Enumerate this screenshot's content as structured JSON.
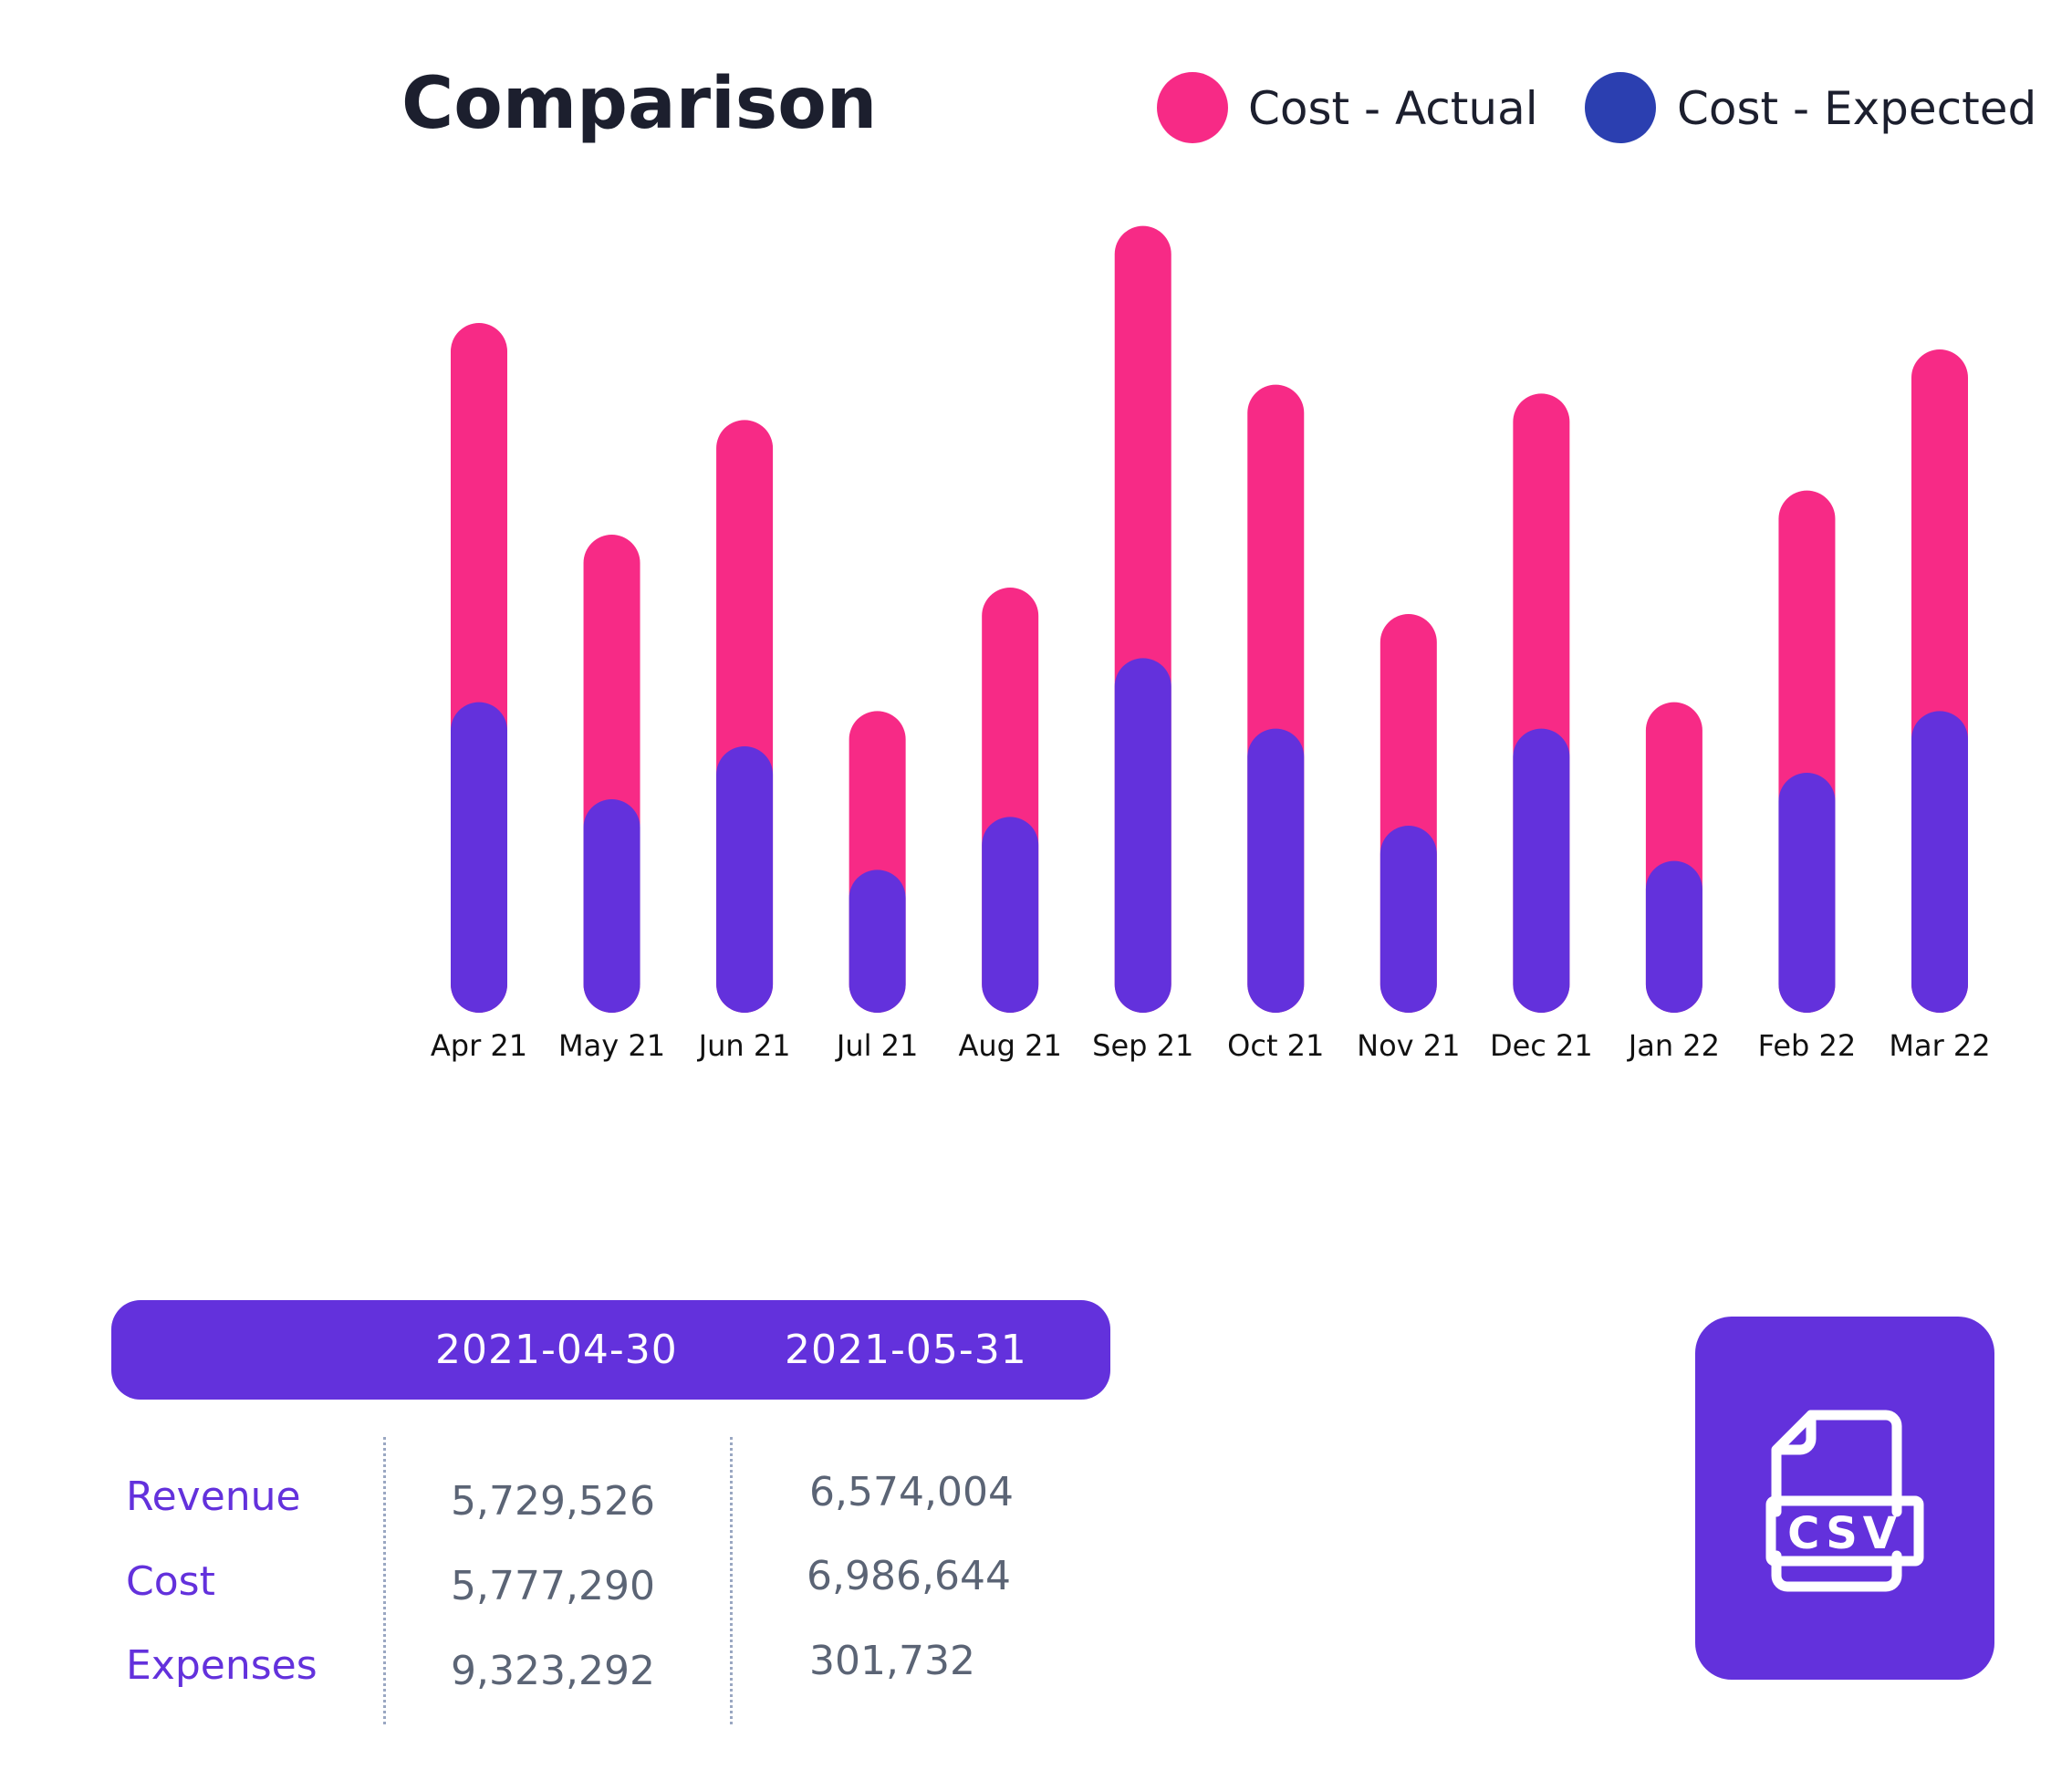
{
  "colors": {
    "actual": "#f72a86",
    "expected": "#6331dc",
    "legend_expected": "#2b3fb0",
    "accent": "#6331dc"
  },
  "chart_data": {
    "type": "bar",
    "stacked": "overlay",
    "title": "Comparison",
    "legend_position": "top-right",
    "categories": [
      "Apr 21",
      "May 21",
      "Jun 21",
      "Jul 21",
      "Aug 21",
      "Sep 21",
      "Oct 21",
      "Nov 21",
      "Dec 21",
      "Jan 22",
      "Feb 22",
      "Mar 22"
    ],
    "series": [
      {
        "name": "Cost - Actual",
        "values": [
          75,
          51,
          64,
          31,
          45,
          86,
          68,
          42,
          67,
          32,
          56,
          72
        ]
      },
      {
        "name": "Cost - Expected",
        "values": [
          32,
          21,
          27,
          13,
          19,
          37,
          29,
          18,
          29,
          14,
          24,
          31
        ]
      }
    ],
    "ylim": [
      0,
      90
    ],
    "grid": false
  },
  "table": {
    "columns": [
      "2021-04-30",
      "2021-05-31"
    ],
    "rows": [
      {
        "label": "Revenue",
        "values": [
          "5,729,526",
          "6,574,004"
        ]
      },
      {
        "label": "Cost",
        "values": [
          "5,777,290",
          "6,986,644"
        ]
      },
      {
        "label": "Expenses",
        "values": [
          "9,323,292",
          "301,732"
        ]
      }
    ]
  },
  "csv_button": {
    "icon": "csv-file-icon",
    "label": "CSV"
  }
}
